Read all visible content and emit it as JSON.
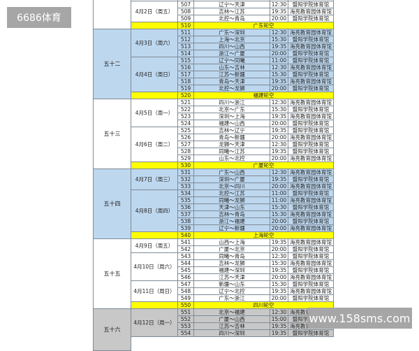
{
  "watermark_top": "6686体育",
  "watermark_bottom": "www.158sms.com",
  "colors": {
    "white": "#ffffff",
    "blue": "#bdd7ee",
    "gray": "#c8c8c8",
    "rest": "#ffff00"
  },
  "rounds": [
    {
      "label": "",
      "color": "white",
      "days": [
        {
          "date": "",
          "games": [
            [
              "506",
              "",
              "",
              ""
            ]
          ]
        },
        {
          "date": "4月2日（周五）",
          "games": [
            [
              "507",
              "辽宁～天津",
              "12:30",
              "暨阳学院体育馆"
            ],
            [
              "508",
              "吉林～江苏",
              "19:35",
              "海亮教育园体育馆"
            ],
            [
              "509",
              "北控～青岛",
              "20:00",
              "暨阳学院体育馆"
            ]
          ]
        }
      ],
      "rest": [
        "510",
        "广东轮空"
      ]
    },
    {
      "label": "五十二",
      "color": "blue",
      "days": [
        {
          "date": "4月3日（周六）",
          "games": [
            [
              "511",
              "广东～深圳",
              "12:30",
              "海亮教育园体育馆"
            ],
            [
              "512",
              "上海～北京",
              "15:30",
              "暨阳学院体育馆"
            ],
            [
              "513",
              "四川～山西",
              "19:35",
              "海亮教育园体育馆"
            ],
            [
              "514",
              "浙江～广厦",
              "20:00",
              "暨阳学院体育馆"
            ]
          ]
        },
        {
          "date": "4月4日（周日）",
          "games": [
            [
              "515",
              "辽宁～同曦",
              "11:00",
              "暨阳学院体育馆"
            ],
            [
              "516",
              "山东～吉林",
              "12:30",
              "海亮教育园体育馆"
            ],
            [
              "517",
              "江苏～新疆",
              "15:30",
              "暨阳学院体育馆"
            ],
            [
              "518",
              "青岛～天津",
              "19:35",
              "海亮教育园体育馆"
            ],
            [
              "519",
              "北控～龙狮",
              "20:00",
              "暨阳学院体育馆"
            ]
          ]
        }
      ],
      "rest": [
        "520",
        "福建轮空"
      ]
    },
    {
      "label": "五十三",
      "color": "white",
      "days": [
        {
          "date": "4月5日（周一）",
          "games": [
            [
              "521",
              "四川～浙江",
              "12:30",
              "海亮教育园体育馆"
            ],
            [
              "522",
              "北京～广东",
              "15:30",
              "暨阳学院体育馆"
            ],
            [
              "523",
              "深圳～上海",
              "19:35",
              "海亮教育园体育馆"
            ],
            [
              "524",
              "福建～山西",
              "20:00",
              "暨阳学院体育馆"
            ]
          ]
        },
        {
          "date": "4月6日（周二）",
          "games": [
            [
              "525",
              "吉林～辽宁",
              "19:35",
              "暨阳学院体育馆"
            ],
            [
              "526",
              "青岛～新疆",
              "20:00",
              "海亮教育园体育馆"
            ],
            [
              "527",
              "龙狮～天津",
              "12:30",
              "暨阳学院体育馆"
            ],
            [
              "528",
              "同曦～江苏",
              "19:35",
              "暨阳学院体育馆"
            ],
            [
              "529",
              "山东～北控",
              "20:00",
              "海亮教育园体育馆"
            ]
          ]
        }
      ],
      "rest": [
        "530",
        "广厦轮空"
      ]
    },
    {
      "label": "五十四",
      "color": "blue",
      "days": [
        {
          "date": "4月7日（周三）",
          "games": [
            [
              "531",
              "广东～山西",
              "12:30",
              "海亮教育园体育馆"
            ],
            [
              "532",
              "深圳～广厦",
              "19:35",
              "暨阳学院体育馆"
            ],
            [
              "533",
              "北京～四川",
              "20:00",
              "海亮教育园体育馆"
            ]
          ]
        },
        {
          "date": "4月8日（周四）",
          "games": [
            [
              "534",
              "北控～江苏",
              "11:00",
              "暨阳学院体育馆"
            ],
            [
              "535",
              "同曦～龙狮",
              "11:00",
              "海亮教育园体育馆"
            ],
            [
              "536",
              "天津～山东",
              "15:30",
              "暨阳学院体育馆"
            ],
            [
              "537",
              "吉林～青岛",
              "15:30",
              "海亮教育园体育馆"
            ],
            [
              "538",
              "浙江～福建",
              "20:00",
              "暨阳学院体育馆"
            ],
            [
              "539",
              "辽宁～新疆",
              "20:00",
              "海亮教育园体育馆"
            ]
          ]
        }
      ],
      "rest": [
        "540",
        "上海轮空"
      ]
    },
    {
      "label": "五十五",
      "color": "white",
      "days": [
        {
          "date": "4月9日（周五）",
          "games": [
            [
              "541",
              "山西～上海",
              "19:35",
              "海亮教育园体育馆"
            ],
            [
              "542",
              "广厦～北京",
              "20:00",
              "暨阳学院体育馆"
            ]
          ]
        },
        {
          "date": "4月10日（周六）",
          "games": [
            [
              "543",
              "同曦～青岛",
              "12:30",
              "暨阳学院体育馆"
            ],
            [
              "544",
              "吉林～龙狮",
              "15:30",
              "海亮教育园体育馆"
            ],
            [
              "545",
              "福建～深圳",
              "19:35",
              "暨阳学院体育馆"
            ],
            [
              "546",
              "江苏～天津",
              "20:00",
              "海亮教育园体育馆"
            ]
          ]
        },
        {
          "date": "4月11日（周日）",
          "games": [
            [
              "547",
              "新疆～山东",
              "15:30",
              "暨阳学院体育馆"
            ],
            [
              "548",
              "辽宁～北控",
              "19:35",
              "海亮教育园体育馆"
            ],
            [
              "549",
              "广东～浙江",
              "20:00",
              "暨阳学院体育馆"
            ]
          ]
        }
      ],
      "rest": [
        "550",
        "四川轮空"
      ]
    },
    {
      "label": "五十六",
      "color": "gray",
      "days": [
        {
          "date": "4月12日（周一）",
          "games": [
            [
              "551",
              "北京～福建",
              "12:30",
              "海亮教育园体育馆"
            ],
            [
              "552",
              "广厦～山西",
              "15:00",
              "暨阳学院体育馆"
            ],
            [
              "553",
              "江苏～吉林",
              "19:35",
              "海亮教育园体育馆"
            ],
            [
              "554",
              "四川～深圳",
              "19:35",
              "暨阳学院体育馆"
            ]
          ]
        }
      ],
      "rest": null
    }
  ]
}
